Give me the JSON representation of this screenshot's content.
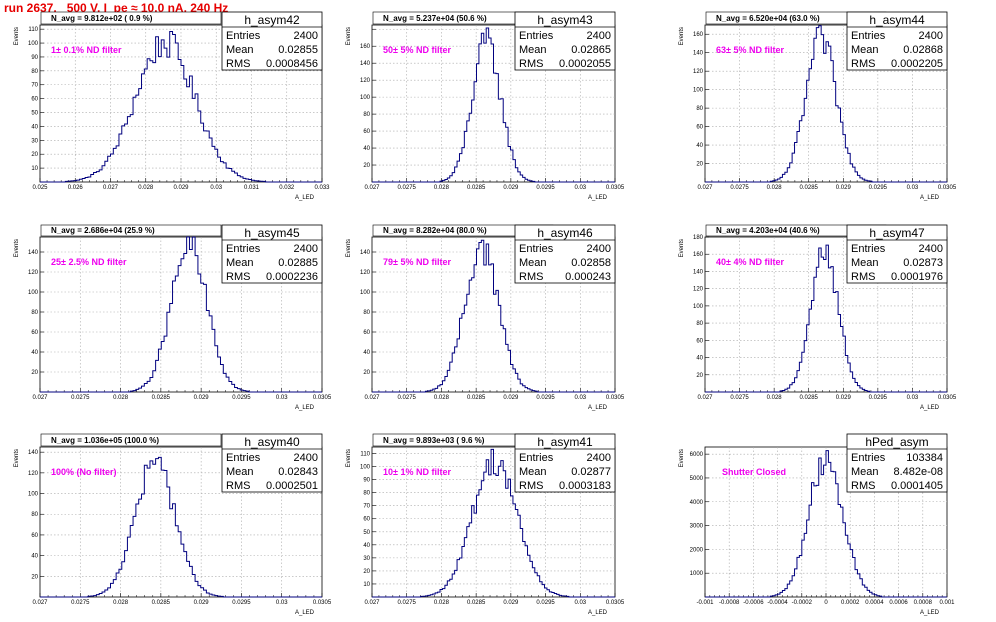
{
  "title": "run 2637,   500 V, I_pe ≈ 10.0 nA, 240 Hz",
  "colors": {
    "title": "#e60000",
    "histogram": "#00007f",
    "filter_label": "#ee00ee",
    "grid": "#aaaaaa"
  },
  "chart_data": [
    {
      "type": "histogram",
      "name": "h_asym42",
      "navg_label": "N_avg = 9.812e+02 ( 0.9 %)",
      "filter_label": "1± 0.1% ND filter",
      "stats": {
        "entries": "2400",
        "mean": "0.02855",
        "rms": "0.0008456"
      },
      "ylabel": "Events",
      "xlabel": "A_LED",
      "grid": true,
      "xlim": [
        0.025,
        0.033
      ],
      "ylim": [
        0,
        113
      ],
      "xticks": [
        0.025,
        0.026,
        0.027,
        0.028,
        0.029,
        0.03,
        0.031,
        0.032,
        0.033
      ],
      "xtick_labels": [
        "0.025",
        "0.026",
        "0.027",
        "0.028",
        "0.029",
        "0.03",
        "0.031",
        "0.032",
        "0.033"
      ],
      "yticks": [
        0,
        10,
        20,
        30,
        40,
        50,
        60,
        70,
        80,
        90,
        100,
        110
      ],
      "ytick_labels": [
        "",
        "10",
        "20",
        "30",
        "40",
        "50",
        "60",
        "70",
        "80",
        "90",
        "100",
        "110"
      ],
      "mean": 0.02855,
      "sigma": 0.0008456,
      "peak": 100
    },
    {
      "type": "histogram",
      "name": "h_asym43",
      "navg_label": "N_avg = 5.237e+04 (50.6 %)",
      "filter_label": "50± 5% ND filter",
      "stats": {
        "entries": "2400",
        "mean": "0.02865",
        "rms": "0.0002055"
      },
      "ylabel": "Events",
      "xlabel": "A_LED",
      "grid": true,
      "xlim": [
        0.027,
        0.0305
      ],
      "ylim": [
        0,
        185
      ],
      "xticks": [
        0.027,
        0.0275,
        0.028,
        0.0285,
        0.029,
        0.0295,
        0.03,
        0.0305
      ],
      "xtick_labels": [
        "0.027",
        "0.0275",
        "0.028",
        "0.0285",
        "0.029",
        "0.0295",
        "0.03",
        "0.0305"
      ],
      "yticks": [
        0,
        20,
        40,
        60,
        80,
        100,
        120,
        140,
        160,
        180
      ],
      "ytick_labels": [
        "",
        "20",
        "40",
        "60",
        "80",
        "100",
        "120",
        "140",
        "160",
        ""
      ],
      "mean": 0.02865,
      "sigma": 0.0002055,
      "peak": 165
    },
    {
      "type": "histogram",
      "name": "h_asym44",
      "navg_label": "N_avg = 6.520e+04 (63.0 %)",
      "filter_label": "63± 5% ND filter",
      "stats": {
        "entries": "2400",
        "mean": "0.02868",
        "rms": "0.0002205"
      },
      "ylabel": "Events",
      "xlabel": "A_LED",
      "grid": true,
      "xlim": [
        0.027,
        0.0305
      ],
      "ylim": [
        0,
        170
      ],
      "xticks": [
        0.027,
        0.0275,
        0.028,
        0.0285,
        0.029,
        0.0295,
        0.03,
        0.0305
      ],
      "xtick_labels": [
        "0.027",
        "0.0275",
        "0.028",
        "0.0285",
        "0.029",
        "0.0295",
        "0.03",
        "0.0305"
      ],
      "yticks": [
        0,
        20,
        40,
        60,
        80,
        100,
        120,
        140,
        160
      ],
      "ytick_labels": [
        "",
        "20",
        "40",
        "60",
        "80",
        "100",
        "120",
        "140",
        "160"
      ],
      "mean": 0.02868,
      "sigma": 0.0002205,
      "peak": 155
    },
    {
      "type": "histogram",
      "name": "h_asym45",
      "navg_label": "N_avg = 2.686e+04 (25.9 %)",
      "filter_label": "25± 2.5% ND filter",
      "stats": {
        "entries": "2400",
        "mean": "0.02885",
        "rms": "0.0002236"
      },
      "ylabel": "Events",
      "xlabel": "A_LED",
      "grid": true,
      "xlim": [
        0.027,
        0.0305
      ],
      "ylim": [
        0,
        155
      ],
      "xticks": [
        0.027,
        0.0275,
        0.028,
        0.0285,
        0.029,
        0.0295,
        0.03,
        0.0305
      ],
      "xtick_labels": [
        "0.027",
        "0.0275",
        "0.028",
        "0.0285",
        "0.029",
        "0.0295",
        "0.03",
        "0.0305"
      ],
      "yticks": [
        0,
        20,
        40,
        60,
        80,
        100,
        120,
        140
      ],
      "ytick_labels": [
        "",
        "20",
        "40",
        "60",
        "80",
        "100",
        "120",
        "140"
      ],
      "mean": 0.02885,
      "sigma": 0.0002236,
      "peak": 145
    },
    {
      "type": "histogram",
      "name": "h_asym46",
      "navg_label": "N_avg = 8.282e+04 (80.0 %)",
      "filter_label": "79± 5% ND filter",
      "stats": {
        "entries": "2400",
        "mean": "0.02858",
        "rms": "0.000243"
      },
      "ylabel": "Events",
      "xlabel": "A_LED",
      "grid": true,
      "xlim": [
        0.027,
        0.0305
      ],
      "ylim": [
        0,
        155
      ],
      "xticks": [
        0.027,
        0.0275,
        0.028,
        0.0285,
        0.029,
        0.0295,
        0.03,
        0.0305
      ],
      "xtick_labels": [
        "0.027",
        "0.0275",
        "0.028",
        "0.0285",
        "0.029",
        "0.0295",
        "0.03",
        "0.0305"
      ],
      "yticks": [
        0,
        20,
        40,
        60,
        80,
        100,
        120,
        140
      ],
      "ytick_labels": [
        "",
        "20",
        "40",
        "60",
        "80",
        "100",
        "120",
        "140"
      ],
      "mean": 0.02858,
      "sigma": 0.000243,
      "peak": 145
    },
    {
      "type": "histogram",
      "name": "h_asym47",
      "navg_label": "N_avg = 4.203e+04 (40.6 %)",
      "filter_label": "40± 4% ND filter",
      "stats": {
        "entries": "2400",
        "mean": "0.02873",
        "rms": "0.0001976"
      },
      "ylabel": "Events",
      "xlabel": "A_LED",
      "grid": true,
      "xlim": [
        0.027,
        0.0305
      ],
      "ylim": [
        0,
        180
      ],
      "xticks": [
        0.027,
        0.0275,
        0.028,
        0.0285,
        0.029,
        0.0295,
        0.03,
        0.0305
      ],
      "xtick_labels": [
        "0.027",
        "0.0275",
        "0.028",
        "0.0285",
        "0.029",
        "0.0295",
        "0.03",
        "0.0305"
      ],
      "yticks": [
        0,
        20,
        40,
        60,
        80,
        100,
        120,
        140,
        160,
        180
      ],
      "ytick_labels": [
        "",
        "20",
        "40",
        "60",
        "80",
        "100",
        "120",
        "140",
        "160",
        "180"
      ],
      "mean": 0.02873,
      "sigma": 0.0001976,
      "peak": 165
    },
    {
      "type": "histogram",
      "name": "h_asym40",
      "navg_label": "N_avg = 1.036e+05 (100.0 %)",
      "filter_label": "100% (No filter)",
      "stats": {
        "entries": "2400",
        "mean": "0.02843",
        "rms": "0.0002501"
      },
      "ylabel": "Events",
      "xlabel": "A_LED",
      "grid": true,
      "xlim": [
        0.027,
        0.0305
      ],
      "ylim": [
        0,
        145
      ],
      "xticks": [
        0.027,
        0.0275,
        0.028,
        0.0285,
        0.029,
        0.0295,
        0.03,
        0.0305
      ],
      "xtick_labels": [
        "0.027",
        "0.0275",
        "0.028",
        "0.0285",
        "0.029",
        "0.0295",
        "0.03",
        "0.0305"
      ],
      "yticks": [
        0,
        20,
        40,
        60,
        80,
        100,
        120,
        140
      ],
      "ytick_labels": [
        "",
        "20",
        "40",
        "60",
        "80",
        "100",
        "120",
        "140"
      ],
      "mean": 0.02843,
      "sigma": 0.0002501,
      "peak": 130
    },
    {
      "type": "histogram",
      "name": "h_asym41",
      "navg_label": "N_avg = 9.893e+03 ( 9.6 %)",
      "filter_label": "10± 1% ND filter",
      "stats": {
        "entries": "2400",
        "mean": "0.02877",
        "rms": "0.0003183"
      },
      "ylabel": "Events",
      "xlabel": "A_LED",
      "grid": true,
      "xlim": [
        0.027,
        0.0305
      ],
      "ylim": [
        0,
        115
      ],
      "xticks": [
        0.027,
        0.0275,
        0.028,
        0.0285,
        0.029,
        0.0295,
        0.03,
        0.0305
      ],
      "xtick_labels": [
        "0.027",
        "0.0275",
        "0.028",
        "0.0285",
        "0.029",
        "0.0295",
        "0.03",
        "0.0305"
      ],
      "yticks": [
        0,
        10,
        20,
        30,
        40,
        50,
        60,
        70,
        80,
        90,
        100,
        110
      ],
      "ytick_labels": [
        "",
        "10",
        "20",
        "30",
        "40",
        "50",
        "60",
        "70",
        "80",
        "90",
        "100",
        "110"
      ],
      "mean": 0.02877,
      "sigma": 0.0003183,
      "peak": 105
    },
    {
      "type": "histogram",
      "name": "hPed_asym",
      "navg_label": "",
      "filter_label": "Shutter Closed",
      "stats": {
        "entries": "103384",
        "mean": "8.482e-08",
        "rms": "0.0001405"
      },
      "ylabel": "Events",
      "xlabel": "A_LED",
      "grid": true,
      "xlim": [
        -0.001,
        0.001
      ],
      "ylim": [
        0,
        6300
      ],
      "xticks": [
        -0.001,
        -0.0008,
        -0.0006,
        -0.0004,
        -0.0002,
        0,
        0.0002,
        0.0004,
        0.0006,
        0.0008,
        0.001
      ],
      "xtick_labels": [
        "-0.001",
        "-0.0008",
        "-0.0006",
        "-0.0004",
        "-0.0002",
        "0",
        "0.0002",
        "0.0004",
        "0.0006",
        "0.0008",
        "0.001"
      ],
      "yticks": [
        0,
        1000,
        2000,
        3000,
        4000,
        5000,
        6000
      ],
      "ytick_labels": [
        "",
        "1000",
        "2000",
        "3000",
        "4000",
        "5000",
        "6000"
      ],
      "mean": 8.48e-08,
      "sigma": 0.0001405,
      "peak": 5900
    }
  ]
}
